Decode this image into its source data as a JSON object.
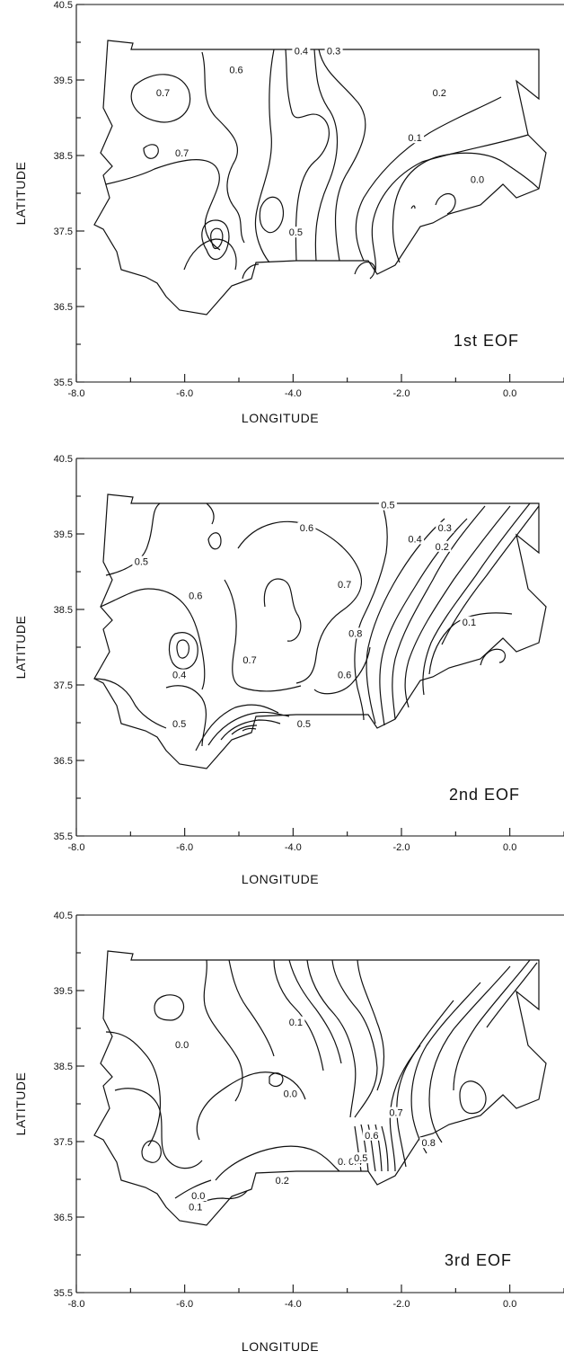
{
  "chart_data": [
    {
      "type": "contour",
      "panel_label": "1st EOF",
      "xlabel": "LONGITUDE",
      "ylabel": "LATITUDE",
      "xlim": [
        -8.0,
        1.0
      ],
      "ylim": [
        35.5,
        40.5
      ],
      "x_ticks": [
        "-8.0",
        "-6.0",
        "-4.0",
        "-2.0",
        "0.0"
      ],
      "y_ticks": [
        "35.5",
        "36.5",
        "37.5",
        "38.5",
        "39.5",
        "40.5"
      ],
      "contour_labels": [
        {
          "text": "0.7",
          "lon": -6.4,
          "lat": 39.3
        },
        {
          "text": "0.6",
          "lon": -5.05,
          "lat": 39.6
        },
        {
          "text": "0.4",
          "lon": -3.85,
          "lat": 39.85
        },
        {
          "text": "0.3",
          "lon": -3.25,
          "lat": 39.85
        },
        {
          "text": "0.7",
          "lon": -6.05,
          "lat": 38.5
        },
        {
          "text": "0.2",
          "lon": -1.3,
          "lat": 39.3
        },
        {
          "text": "0.1",
          "lon": -1.75,
          "lat": 38.7
        },
        {
          "text": "0.0",
          "lon": -0.6,
          "lat": 38.15
        },
        {
          "text": "0.5",
          "lon": -3.95,
          "lat": 37.45
        }
      ]
    },
    {
      "type": "contour",
      "panel_label": "2nd EOF",
      "xlabel": "LONGITUDE",
      "ylabel": "LATITUDE",
      "xlim": [
        -8.0,
        1.0
      ],
      "ylim": [
        35.5,
        40.5
      ],
      "x_ticks": [
        "-8.0",
        "-6.0",
        "-4.0",
        "-2.0",
        "0.0"
      ],
      "y_ticks": [
        "35.5",
        "36.5",
        "37.5",
        "38.5",
        "39.5",
        "40.5"
      ],
      "contour_labels": [
        {
          "text": "0.5",
          "lon": -2.25,
          "lat": 39.85
        },
        {
          "text": "0.6",
          "lon": -3.75,
          "lat": 39.55
        },
        {
          "text": "0.4",
          "lon": -1.75,
          "lat": 39.4
        },
        {
          "text": "0.3",
          "lon": -1.2,
          "lat": 39.55
        },
        {
          "text": "0.2",
          "lon": -1.25,
          "lat": 39.3
        },
        {
          "text": "0.5",
          "lon": -6.8,
          "lat": 39.1
        },
        {
          "text": "0.7",
          "lon": -3.05,
          "lat": 38.8
        },
        {
          "text": "0.6",
          "lon": -5.8,
          "lat": 38.65
        },
        {
          "text": "0.8",
          "lon": -2.85,
          "lat": 38.15
        },
        {
          "text": "0.1",
          "lon": -0.75,
          "lat": 38.3
        },
        {
          "text": "0.4",
          "lon": -6.1,
          "lat": 37.6
        },
        {
          "text": "0.7",
          "lon": -4.8,
          "lat": 37.8
        },
        {
          "text": "0.6",
          "lon": -3.05,
          "lat": 37.6
        },
        {
          "text": "0.5",
          "lon": -6.1,
          "lat": 36.95
        },
        {
          "text": "0.5",
          "lon": -3.8,
          "lat": 36.95
        }
      ]
    },
    {
      "type": "contour",
      "panel_label": "3rd EOF",
      "xlabel": "LONGITUDE",
      "ylabel": "LATITUDE",
      "xlim": [
        -8.0,
        1.0
      ],
      "ylim": [
        35.5,
        40.5
      ],
      "x_ticks": [
        "-8.0",
        "-6.0",
        "-4.0",
        "-2.0",
        "0.0"
      ],
      "y_ticks": [
        "35.5",
        "36.5",
        "37.5",
        "38.5",
        "39.5",
        "40.5"
      ],
      "contour_labels": [
        {
          "text": "0.1",
          "lon": -3.95,
          "lat": 39.05
        },
        {
          "text": "0.0",
          "lon": -6.05,
          "lat": 38.75
        },
        {
          "text": "0.0",
          "lon": -4.05,
          "lat": 38.1
        },
        {
          "text": "0.7",
          "lon": -2.1,
          "lat": 37.85
        },
        {
          "text": "0.6",
          "lon": -2.55,
          "lat": 37.55
        },
        {
          "text": "0.8",
          "lon": -1.5,
          "lat": 37.45
        },
        {
          "text": "0.3",
          "lon": -3.05,
          "lat": 37.2
        },
        {
          "text": "0.4",
          "lon": -2.85,
          "lat": 37.2
        },
        {
          "text": "0.5",
          "lon": -2.75,
          "lat": 37.25
        },
        {
          "text": "0.2",
          "lon": -4.2,
          "lat": 36.95
        },
        {
          "text": "0.0",
          "lon": -5.75,
          "lat": 36.75
        },
        {
          "text": "0.1",
          "lon": -5.8,
          "lat": 36.6
        }
      ]
    }
  ]
}
